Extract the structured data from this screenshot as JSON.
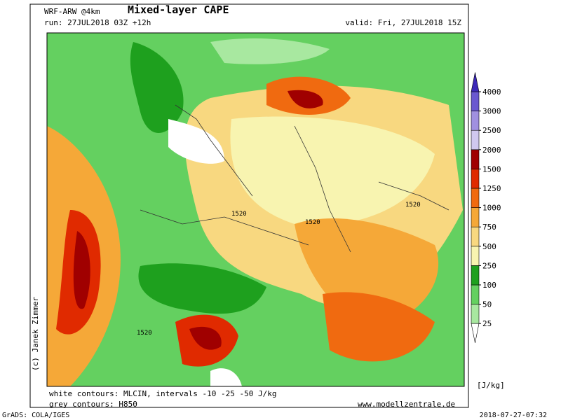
{
  "header": {
    "model": "WRF-ARW @4km",
    "title": "Mixed-layer CAPE",
    "run": "run: 27JUL2018 03Z +12h",
    "valid": "valid: Fri, 27JUL2018 15Z"
  },
  "colorbar": {
    "levels": [
      25,
      50,
      100,
      250,
      500,
      750,
      1000,
      1250,
      1500,
      2000,
      2500,
      3000,
      4000
    ],
    "colors": [
      "#ffffff",
      "#a8e8a0",
      "#64d060",
      "#1ea01e",
      "#f8f4b0",
      "#f8d880",
      "#f5a838",
      "#f06a10",
      "#e02a00",
      "#a00000",
      "#d0c8f0",
      "#a090e0",
      "#6a58d0",
      "#3c28b8"
    ],
    "unit": "[J/kg]"
  },
  "map": {
    "contour_labels": [
      "1520",
      "1520",
      "1520",
      "1520"
    ]
  },
  "footer": {
    "note1": "white contours: MLCIN, intervals -10 -25 -50 J/kg",
    "note2": "grey contours: H850",
    "website": "www.modellzentrale.de",
    "software": "GrADS: COLA/IGES",
    "timestamp": "2018-07-27-07:32",
    "copyright": "(c) Janek Zimmer"
  }
}
